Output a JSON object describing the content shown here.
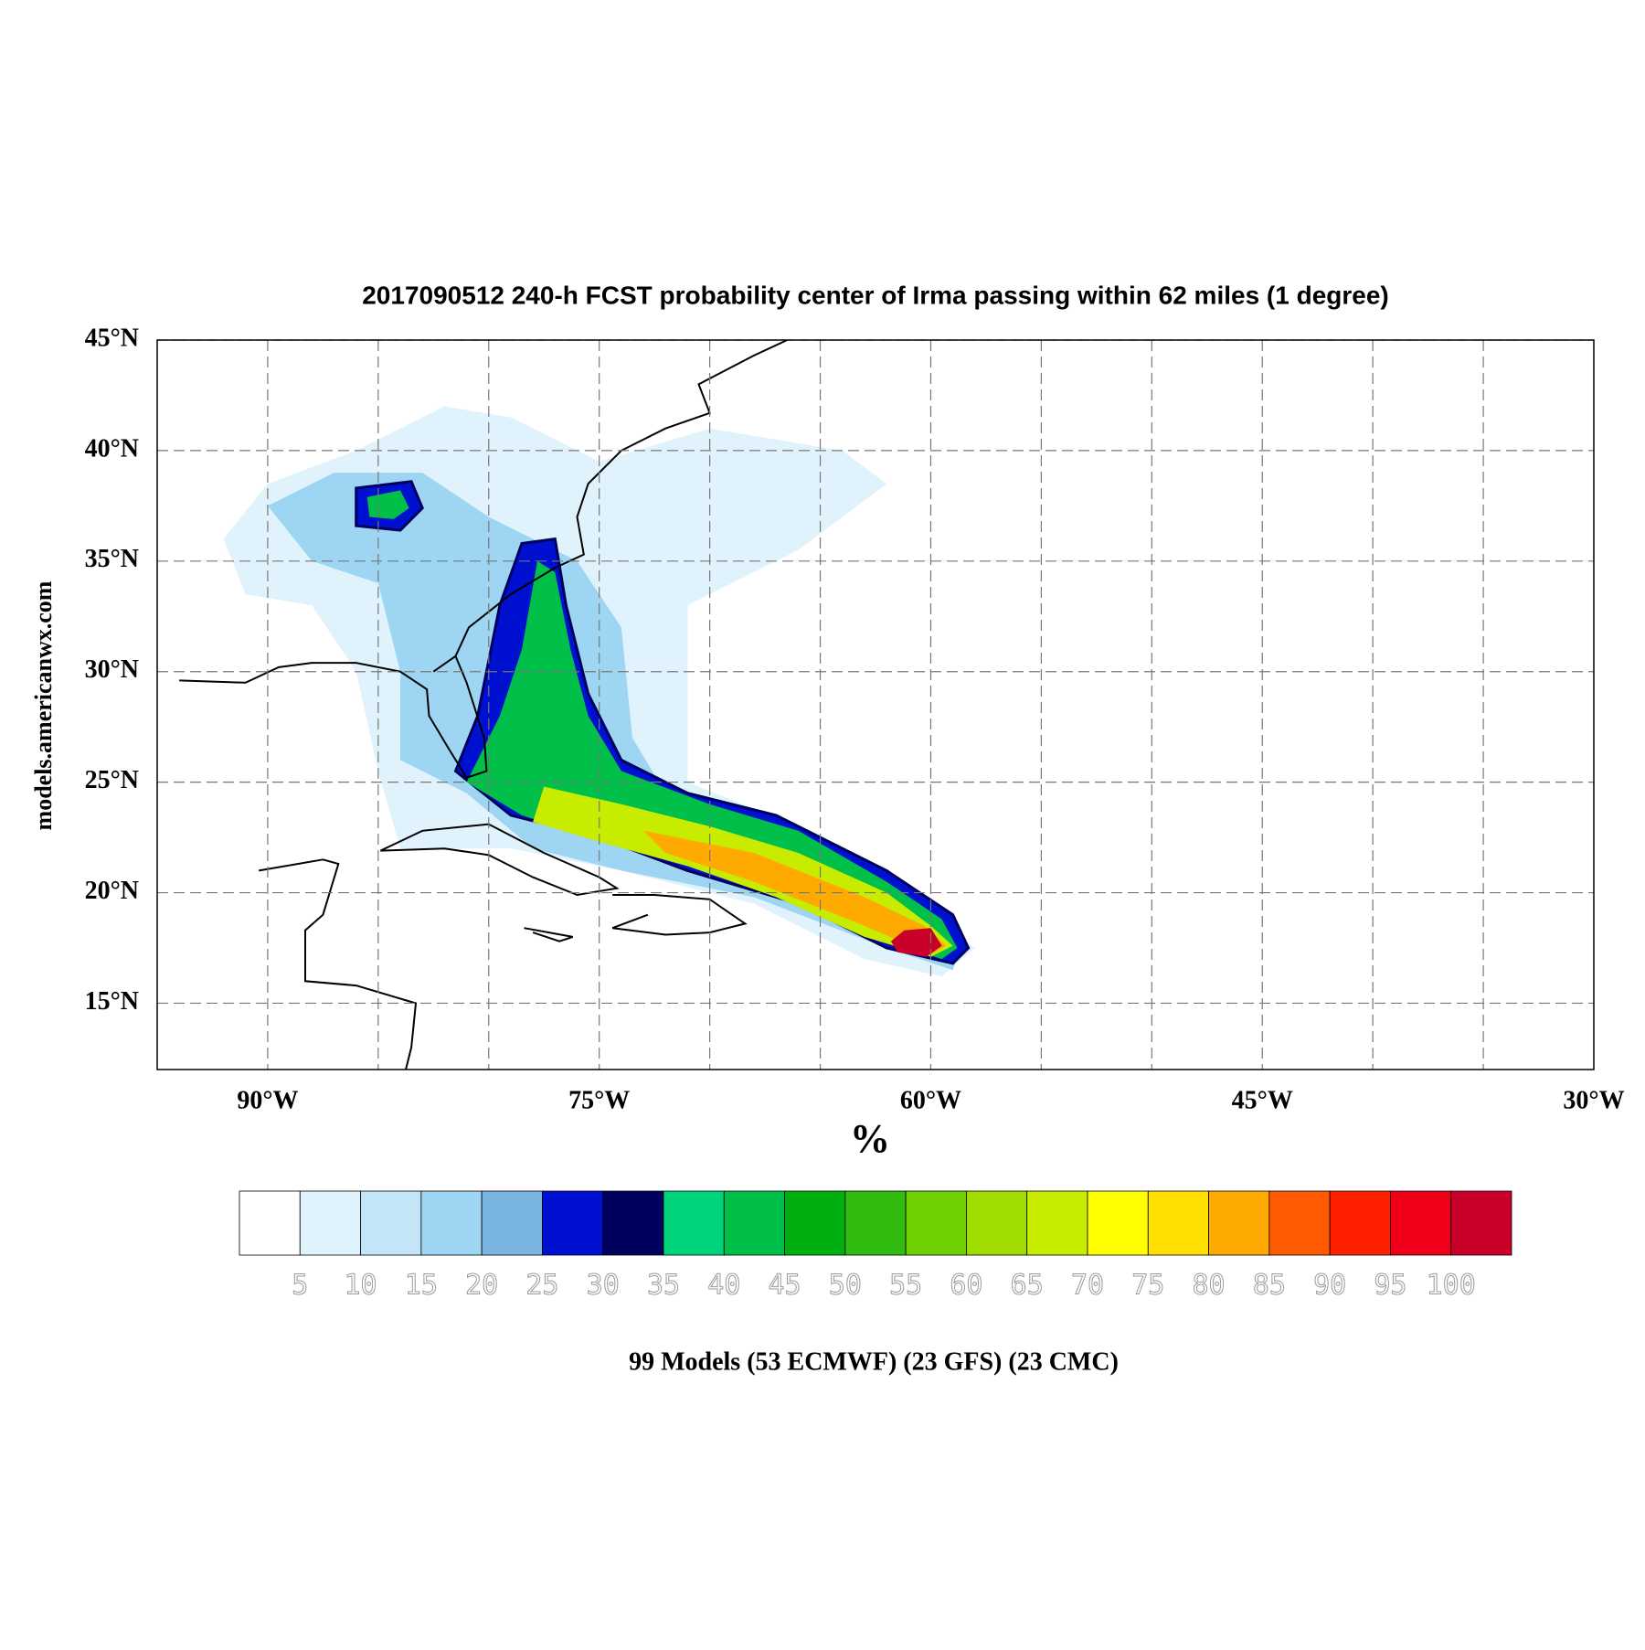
{
  "chart_data": {
    "type": "probability-map",
    "title": "2017090512 240-h FCST probability center of Irma passing within 62 miles (1 degree)",
    "y_label": "models.americanwx.com",
    "x_label": "%",
    "footnote": "99 Models (53 ECMWF) (23 GFS) (23 CMC)",
    "xlim": [
      -95,
      -30
    ],
    "ylim": [
      12,
      45
    ],
    "xticks": [
      {
        "value": -90,
        "label": "90°W"
      },
      {
        "value": -75,
        "label": "75°W"
      },
      {
        "value": -60,
        "label": "60°W"
      },
      {
        "value": -45,
        "label": "45°W"
      },
      {
        "value": -30,
        "label": "30°W"
      }
    ],
    "xgrid": [
      -90,
      -85,
      -80,
      -75,
      -70,
      -65,
      -60,
      -55,
      -50,
      -45,
      -40,
      -35
    ],
    "yticks": [
      {
        "value": 15,
        "label": "15°N"
      },
      {
        "value": 20,
        "label": "20°N"
      },
      {
        "value": 25,
        "label": "25°N"
      },
      {
        "value": 30,
        "label": "30°N"
      },
      {
        "value": 35,
        "label": "35°N"
      },
      {
        "value": 40,
        "label": "40°N"
      },
      {
        "value": 45,
        "label": "45°N"
      }
    ],
    "grid": true,
    "colorbar": {
      "labels": [
        5,
        10,
        15,
        20,
        25,
        30,
        35,
        40,
        45,
        50,
        55,
        60,
        65,
        70,
        75,
        80,
        85,
        90,
        95,
        100
      ],
      "colors": [
        "#ffffff",
        "#e0f3fc",
        "#c2e6f8",
        "#9dd5f2",
        "#79b5e0",
        "#0010d0",
        "#00005e",
        "#00d47a",
        "#00c04a",
        "#00b010",
        "#30bd10",
        "#6ed000",
        "#a0dc00",
        "#c8ec00",
        "#ffff00",
        "#ffe000",
        "#ffaa00",
        "#ff5a00",
        "#ff2000",
        "#f00018",
        "#c8002a"
      ]
    }
  }
}
